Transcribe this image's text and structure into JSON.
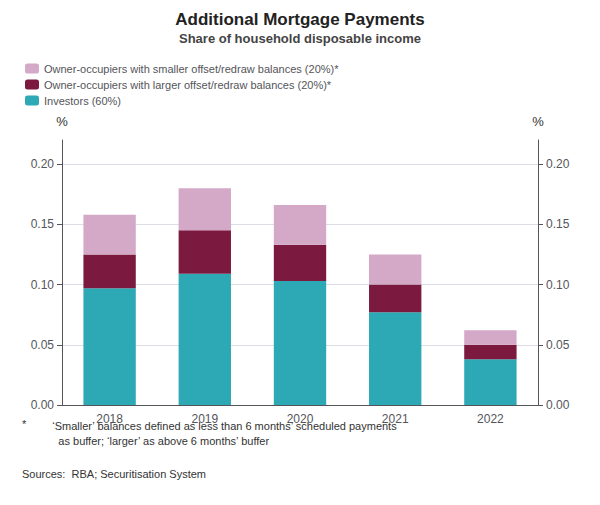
{
  "chart_data": {
    "type": "bar",
    "title": "Additional Mortgage Payments",
    "subtitle": "Share of household disposable income",
    "categories": [
      "2018",
      "2019",
      "2020",
      "2021",
      "2022"
    ],
    "series": [
      {
        "name": "Investors (60%)",
        "color": "#2da8b5",
        "values": [
          0.097,
          0.109,
          0.103,
          0.077,
          0.038
        ]
      },
      {
        "name": "Owner-occupiers with larger offset/redraw balances (20%)*",
        "color": "#7b1a3e",
        "values": [
          0.028,
          0.036,
          0.03,
          0.023,
          0.012
        ]
      },
      {
        "name": "Owner-occupiers with smaller offset/redraw balances (20%)*",
        "color": "#d4a8c7",
        "values": [
          0.033,
          0.035,
          0.033,
          0.025,
          0.012
        ]
      }
    ],
    "stacked": true,
    "ylim": [
      0.0,
      0.22
    ],
    "yticks": [
      {
        "value": 0.0,
        "label": "0.00"
      },
      0.05,
      {
        "value": 0.1,
        "label": "0.10"
      },
      0.15,
      {
        "value": 0.2,
        "label": "0.20"
      }
    ],
    "y2lim": [
      0.0,
      0.22
    ],
    "y2ticks": [
      {
        "value": 0.0,
        "label": "0.00"
      },
      0.05,
      {
        "value": 0.1,
        "label": "0.10"
      },
      0.15,
      {
        "value": 0.2,
        "label": "0.20"
      }
    ],
    "ylabel": "%",
    "y2label": "%",
    "grid": true,
    "legend": "upper left",
    "annotations": [
      "*",
      "    ‘Smaller’ balances defined as less than 6 months’ scheduled payments\n      as buffer; ‘larger’ as above 6 months’ buffer",
      "Sources:  RBA; Securitisation System"
    ]
  }
}
